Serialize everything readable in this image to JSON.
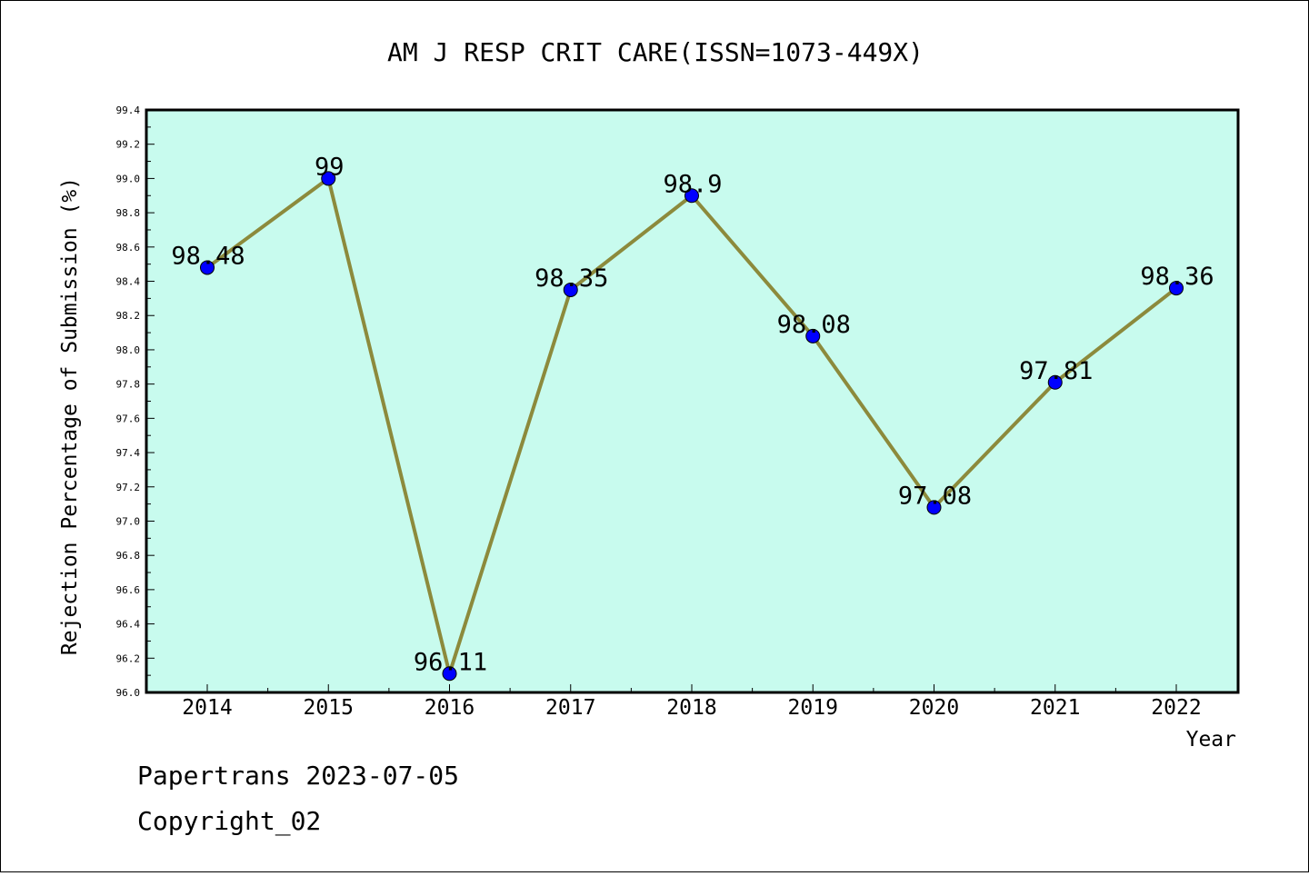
{
  "chart_data": {
    "type": "line",
    "title": "AM J RESP CRIT CARE(ISSN=1073-449X)",
    "xlabel": "Year",
    "ylabel": "Rejection Percentage of Submission (%)",
    "categories": [
      "2014",
      "2015",
      "2016",
      "2017",
      "2018",
      "2019",
      "2020",
      "2021",
      "2022"
    ],
    "series": [
      {
        "values": [
          98.48,
          99,
          96.11,
          98.35,
          98.9,
          98.08,
          97.08,
          97.81,
          98.36
        ],
        "labels": [
          "98.48",
          "99",
          "96.11",
          "98.35",
          "98.9",
          "98.08",
          "97.08",
          "97.81",
          "98.36"
        ]
      }
    ],
    "ylim": [
      96.0,
      99.4
    ],
    "yticks": [
      "96.0",
      "96.2",
      "96.4",
      "96.6",
      "96.8",
      "97.0",
      "97.2",
      "97.4",
      "97.6",
      "97.8",
      "98.0",
      "98.2",
      "98.4",
      "98.6",
      "98.8",
      "99.0",
      "99.2",
      "99.4"
    ],
    "grid": false,
    "colors": {
      "plot_background": "#c8fbee",
      "line": "#8c8a3c",
      "marker": "#0000ff"
    }
  },
  "footer": {
    "line1": "Papertrans 2023-07-05",
    "line2": "Copyright_02"
  }
}
